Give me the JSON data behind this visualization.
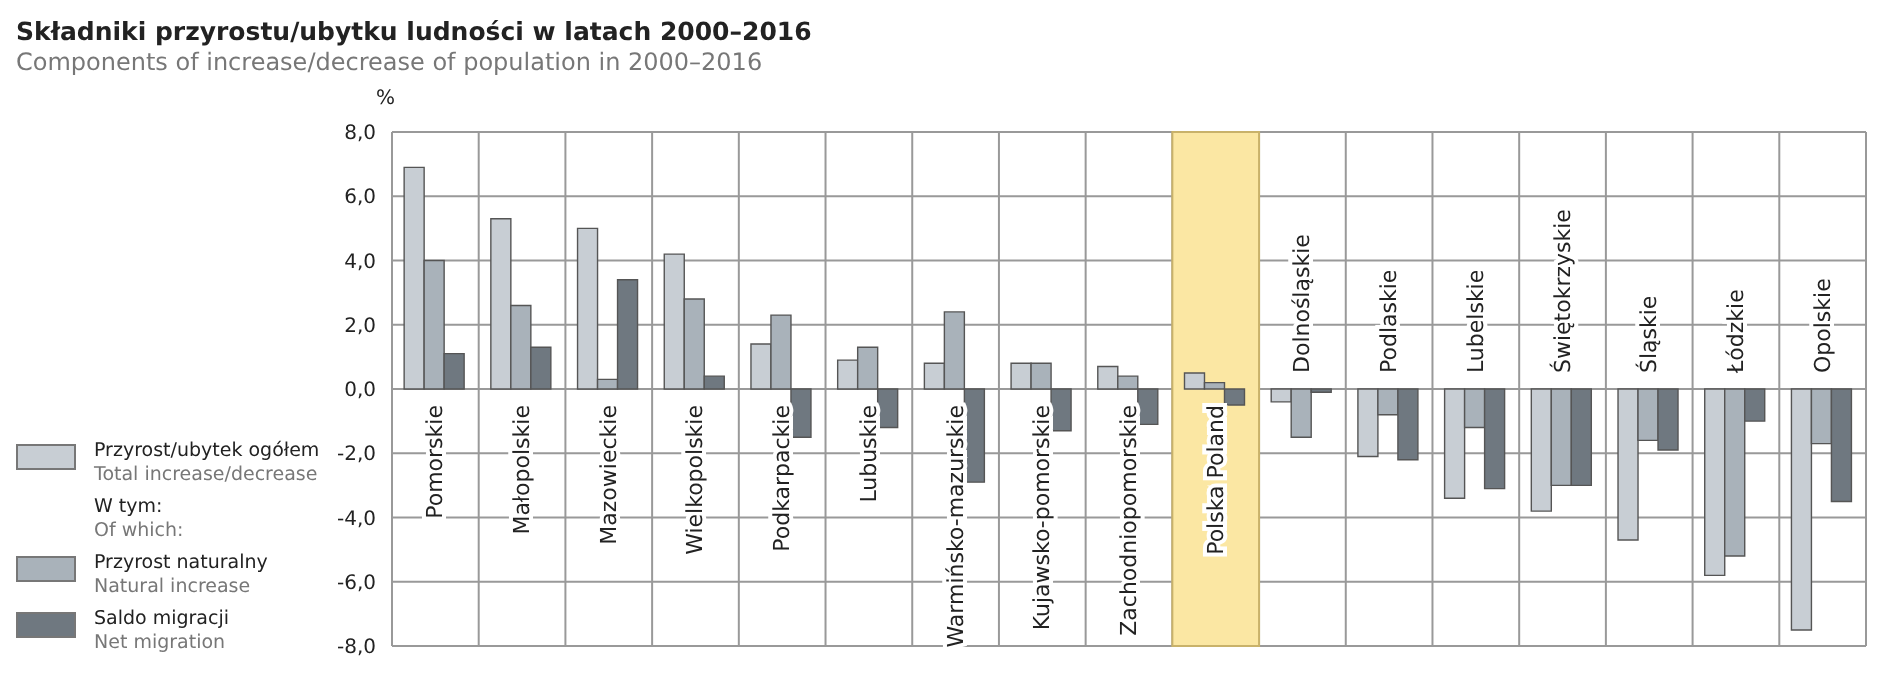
{
  "chart_data": {
    "type": "bar",
    "title": "Składniki przyrostu/ubytku ludności w latach 2000–2016",
    "subtitle": "Components of increase/decrease of population in 2000–2016",
    "ylabel": "%",
    "categories": [
      "Pomorskie",
      "Małopolskie",
      "Mazowieckie",
      "Wielkopolskie",
      "Podkarpackie",
      "Lubuskie",
      "Warmińsko-mazurskie",
      "Kujawsko-pomorskie",
      "Zachodniopomorskie",
      "Polska Poland",
      "Dolnośląskie",
      "Podlaskie",
      "Lubelskie",
      "Świętokrzyskie",
      "Śląskie",
      "Łódzkie",
      "Opolskie"
    ],
    "series": [
      {
        "name": "Przyrost/ubytek ogółem\nTotal increase/decrease",
        "color": "#c8ced4",
        "values": [
          6.9,
          5.3,
          5.0,
          4.2,
          1.4,
          0.9,
          0.8,
          0.8,
          0.7,
          0.5,
          -0.4,
          -2.1,
          -3.4,
          -3.8,
          -4.7,
          -5.8,
          -7.5
        ]
      },
      {
        "name": "Przyrost naturalny\nNatural increase",
        "color": "#a9b2ba",
        "values": [
          4.0,
          2.6,
          0.3,
          2.8,
          2.3,
          1.3,
          2.4,
          0.8,
          0.4,
          0.2,
          -1.5,
          -0.8,
          -1.2,
          -3.0,
          -1.6,
          -5.2,
          -1.7
        ]
      },
      {
        "name": "Saldo migracji\nNet migration",
        "color": "#6f7880",
        "values": [
          1.1,
          1.3,
          3.4,
          0.4,
          -1.5,
          -1.2,
          -2.9,
          -1.3,
          -1.1,
          -0.5,
          -0.1,
          -2.2,
          -3.1,
          -3.0,
          -1.9,
          -1.0,
          -3.5
        ]
      }
    ],
    "annotations": [
      "W tym:\nOf which:"
    ],
    "bands": [
      {
        "axis": "x",
        "from": "Polska Poland",
        "to": "Polska Poland",
        "color": "#fbe7a3"
      }
    ],
    "ylim": [
      -8,
      8
    ],
    "yticks": [
      {
        "value": -8,
        "label": "-8,0"
      },
      {
        "value": -6,
        "label": "-6,0"
      },
      {
        "value": -4,
        "label": "-4,0"
      },
      {
        "value": -2,
        "label": "-2,0"
      },
      {
        "value": 0,
        "label": "0,0"
      },
      {
        "value": 2,
        "label": "2,0"
      },
      {
        "value": 4,
        "label": "4,0"
      },
      {
        "value": 6,
        "label": "6,0"
      },
      {
        "value": 8,
        "label": "8,0"
      }
    ],
    "grid": true,
    "legend": "left"
  }
}
